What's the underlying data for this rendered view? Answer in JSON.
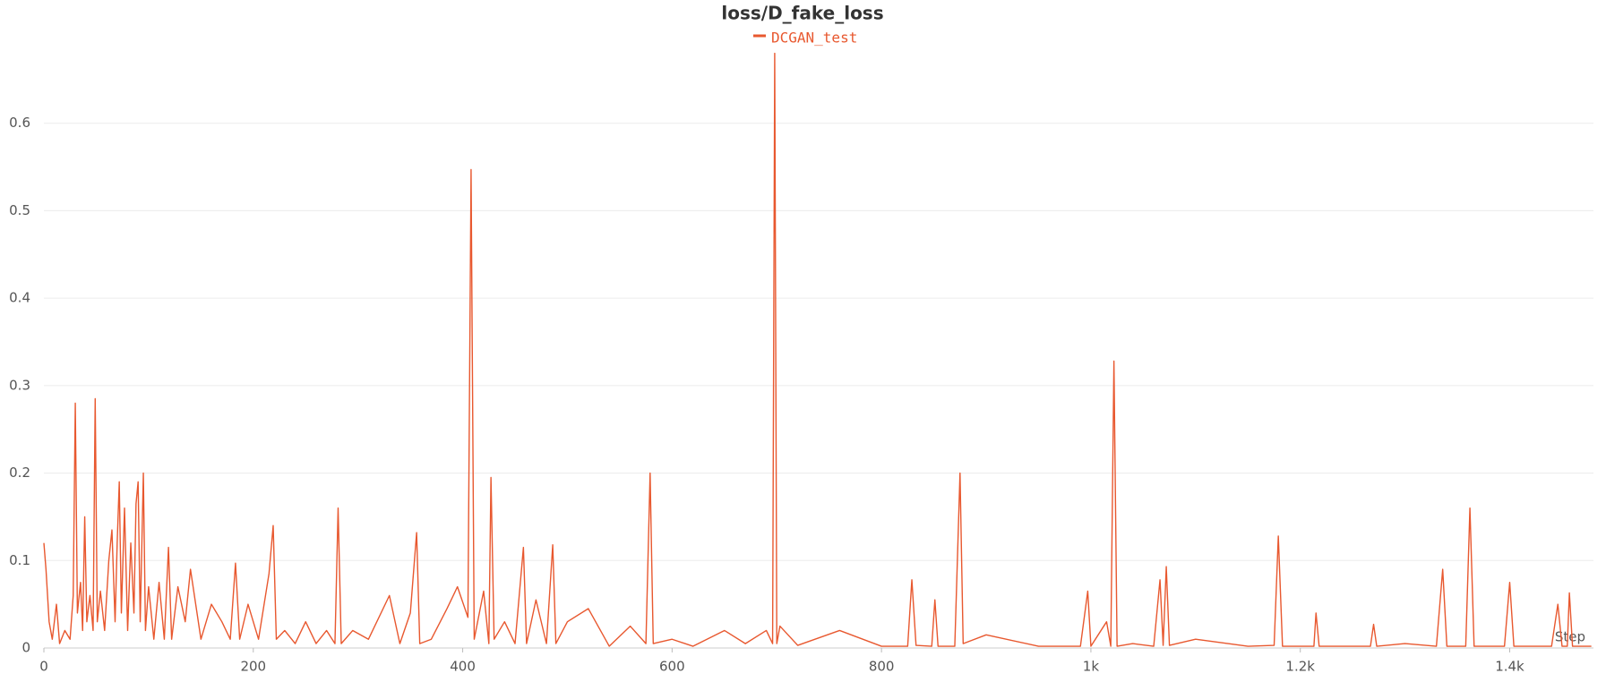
{
  "chart_data": {
    "type": "line",
    "title": "loss/D_fake_loss",
    "x_label": "Step",
    "x": [
      0,
      2,
      5,
      8,
      12,
      15,
      20,
      25,
      28,
      30,
      32,
      35,
      37,
      39,
      41,
      44,
      47,
      49,
      51,
      54,
      58,
      62,
      65,
      68,
      70,
      72,
      74,
      77,
      80,
      83,
      86,
      88,
      90,
      92,
      95,
      97,
      100,
      105,
      110,
      115,
      119,
      122,
      128,
      135,
      140,
      150,
      160,
      170,
      178,
      183,
      187,
      195,
      205,
      215,
      219,
      222,
      230,
      240,
      250,
      260,
      270,
      278,
      281,
      284,
      295,
      310,
      330,
      340,
      350,
      356,
      359,
      370,
      385,
      395,
      405,
      408,
      411,
      420,
      425,
      427,
      430,
      440,
      450,
      458,
      461,
      470,
      480,
      486,
      489,
      500,
      520,
      540,
      560,
      575,
      579,
      582,
      600,
      620,
      650,
      670,
      690,
      696,
      698,
      700,
      703,
      720,
      760,
      800,
      825,
      829,
      833,
      848,
      851,
      854,
      870,
      875,
      878,
      900,
      950,
      990,
      997,
      1000,
      1015,
      1019,
      1022,
      1025,
      1040,
      1060,
      1066,
      1069,
      1072,
      1075,
      1100,
      1150,
      1175,
      1179,
      1183,
      1213,
      1215,
      1218,
      1267,
      1270,
      1273,
      1300,
      1330,
      1336,
      1340,
      1358,
      1362,
      1366,
      1395,
      1400,
      1404,
      1440,
      1446,
      1450,
      1455,
      1457,
      1460,
      1478
    ],
    "series": [
      {
        "name": "DCGAN_test",
        "color": "#e8582f",
        "values": [
          0.12,
          0.09,
          0.03,
          0.01,
          0.05,
          0.005,
          0.02,
          0.01,
          0.06,
          0.28,
          0.04,
          0.075,
          0.02,
          0.15,
          0.03,
          0.06,
          0.02,
          0.285,
          0.03,
          0.065,
          0.02,
          0.1,
          0.135,
          0.03,
          0.12,
          0.19,
          0.04,
          0.16,
          0.02,
          0.12,
          0.04,
          0.165,
          0.19,
          0.03,
          0.2,
          0.02,
          0.07,
          0.01,
          0.075,
          0.01,
          0.115,
          0.01,
          0.07,
          0.03,
          0.09,
          0.01,
          0.05,
          0.03,
          0.01,
          0.097,
          0.01,
          0.05,
          0.01,
          0.085,
          0.14,
          0.01,
          0.02,
          0.005,
          0.03,
          0.005,
          0.02,
          0.005,
          0.16,
          0.005,
          0.02,
          0.01,
          0.06,
          0.005,
          0.04,
          0.132,
          0.005,
          0.01,
          0.045,
          0.07,
          0.035,
          0.547,
          0.01,
          0.065,
          0.005,
          0.195,
          0.01,
          0.03,
          0.005,
          0.115,
          0.005,
          0.055,
          0.005,
          0.118,
          0.005,
          0.03,
          0.045,
          0.002,
          0.025,
          0.005,
          0.2,
          0.005,
          0.01,
          0.002,
          0.02,
          0.005,
          0.02,
          0.005,
          0.68,
          0.005,
          0.025,
          0.003,
          0.02,
          0.002,
          0.002,
          0.078,
          0.003,
          0.002,
          0.055,
          0.002,
          0.002,
          0.2,
          0.005,
          0.015,
          0.002,
          0.002,
          0.065,
          0.002,
          0.03,
          0.002,
          0.328,
          0.002,
          0.005,
          0.002,
          0.078,
          0.003,
          0.093,
          0.003,
          0.01,
          0.002,
          0.003,
          0.128,
          0.002,
          0.002,
          0.04,
          0.002,
          0.002,
          0.027,
          0.002,
          0.005,
          0.002,
          0.09,
          0.002,
          0.002,
          0.16,
          0.002,
          0.002,
          0.075,
          0.002,
          0.002,
          0.05,
          0.002,
          0.002,
          0.063,
          0.002,
          0.002
        ]
      }
    ],
    "xlim": [
      0,
      1480
    ],
    "ylim": [
      0,
      0.7
    ],
    "xticks": [
      0,
      200,
      400,
      600,
      800,
      {
        "value": 1000,
        "label": "1k"
      },
      {
        "value": 1200,
        "label": "1.2k"
      },
      {
        "value": 1400,
        "label": "1.4k"
      }
    ],
    "yticks": [
      0,
      0.1,
      0.2,
      0.3,
      0.4,
      0.5,
      0.6
    ],
    "grid": true
  }
}
